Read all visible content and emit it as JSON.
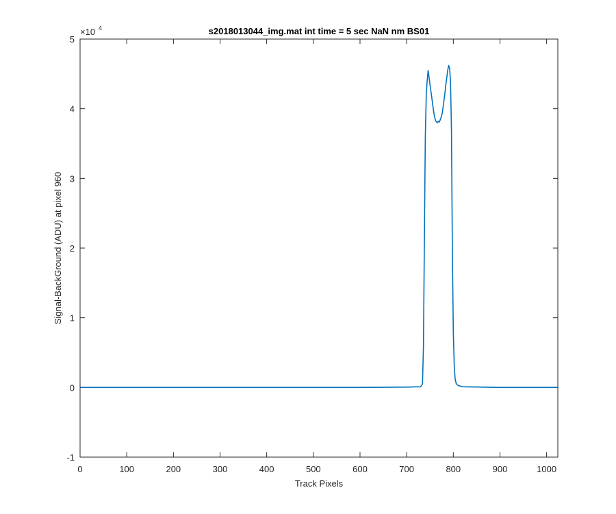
{
  "chart_data": {
    "type": "line",
    "title": "s2018013044_img.mat int time = 5 sec  NaN nm BS01",
    "xlabel": "Track Pixels",
    "ylabel": "Signal-BackGround (ADU) at pixel 960",
    "xlim": [
      0,
      1024
    ],
    "ylim": [
      -10000,
      50000
    ],
    "y_multiplier_label": "×10",
    "y_multiplier_exponent": "4",
    "x_ticks": [
      0,
      100,
      200,
      300,
      400,
      500,
      600,
      700,
      800,
      900,
      1000
    ],
    "x_tick_labels": [
      "0",
      "100",
      "200",
      "300",
      "400",
      "500",
      "600",
      "700",
      "800",
      "900",
      "1000"
    ],
    "y_ticks": [
      -10000,
      0,
      10000,
      20000,
      30000,
      40000,
      50000
    ],
    "y_tick_labels": [
      "-1",
      "0",
      "1",
      "2",
      "3",
      "4",
      "5"
    ],
    "box": true,
    "grid": false,
    "line_color": "#0072bd",
    "series": [
      {
        "x": [
          0,
          100,
          200,
          300,
          400,
          500,
          600,
          700,
          730,
          734,
          736,
          738,
          740,
          742,
          744,
          746,
          748,
          750,
          752,
          754,
          756,
          758,
          760,
          762,
          764,
          766,
          768,
          770,
          772,
          774,
          776,
          778,
          780,
          782,
          784,
          786,
          788,
          790,
          792,
          794,
          796,
          798,
          800,
          802,
          804,
          806,
          808,
          810,
          815,
          820,
          900,
          1000,
          1024
        ],
        "y": [
          0,
          0,
          0,
          0,
          0,
          0,
          0,
          50,
          100,
          500,
          6000,
          22000,
          36000,
          42000,
          44000,
          45500,
          44500,
          43500,
          42500,
          41500,
          40500,
          39500,
          38800,
          38300,
          38100,
          38000,
          38200,
          38100,
          38400,
          38800,
          39300,
          40200,
          41200,
          42200,
          43500,
          44500,
          45500,
          46200,
          45800,
          44000,
          37000,
          20000,
          8000,
          3000,
          1200,
          600,
          400,
          300,
          200,
          100,
          0,
          0,
          0
        ]
      }
    ]
  }
}
